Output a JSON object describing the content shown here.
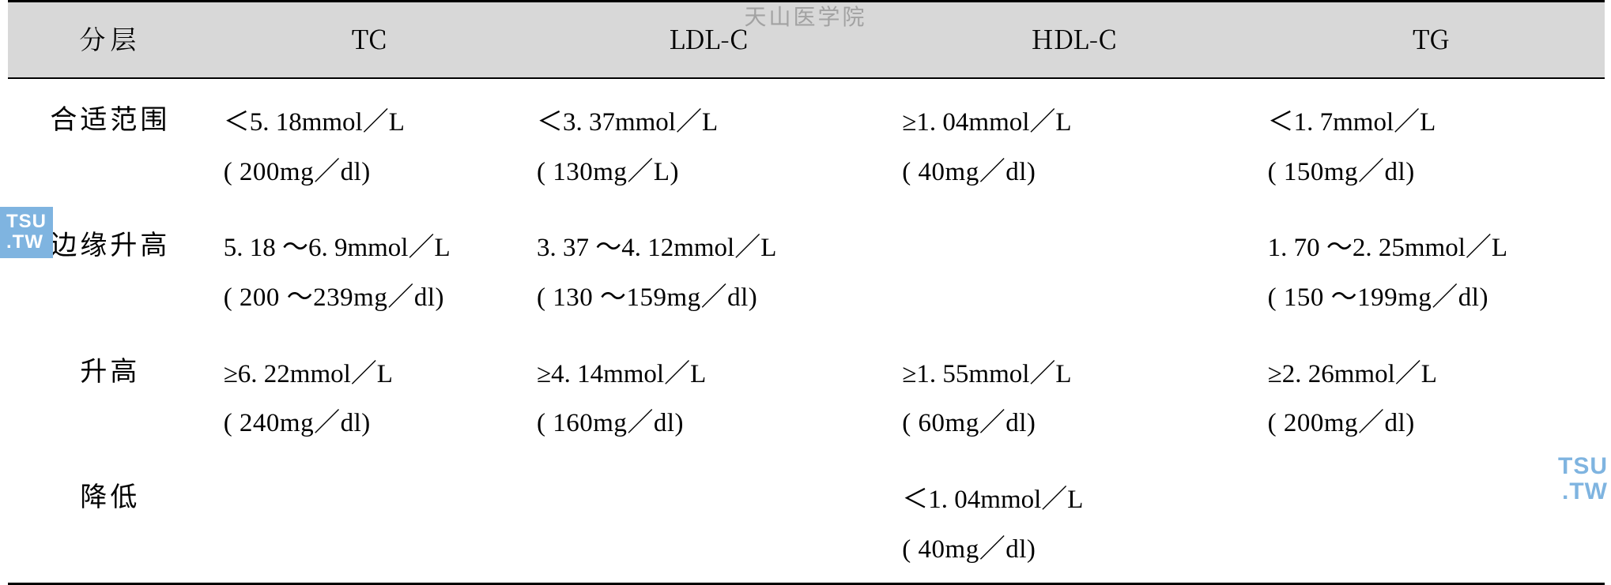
{
  "table": {
    "type": "table",
    "background_color": "#ffffff",
    "header_bg": "#d8d8d8",
    "border_color": "#000000",
    "font_family_cjk": "SimSun",
    "font_family_latin": "Times New Roman",
    "header_fontsize": 33,
    "body_fontsize": 33,
    "columns": [
      "分层",
      "TC",
      "LDL-C",
      "HDL-C",
      "TG"
    ],
    "rows": [
      {
        "label": "合适范围",
        "TC": {
          "line1": "＜5. 18mmol／L",
          "line2": "( 200mg／dl)"
        },
        "LDL_C": {
          "line1": "＜3. 37mmol／L",
          "line2": "( 130mg／L)"
        },
        "HDL_C": {
          "line1": "≥1. 04mmol／L",
          "line2": "( 40mg／dl)"
        },
        "TG": {
          "line1": "＜1. 7mmol／L",
          "line2": "( 150mg／dl)"
        }
      },
      {
        "label": "边缘升高",
        "TC": {
          "line1": "5. 18 ～6. 9mmol／L",
          "line2": "( 200 ～239mg／dl)"
        },
        "LDL_C": {
          "line1": "3. 37 ～4. 12mmol／L",
          "line2": "( 130 ～159mg／dl)"
        },
        "HDL_C": {
          "line1": "",
          "line2": ""
        },
        "TG": {
          "line1": "1. 70 ～2. 25mmol／L",
          "line2": "( 150 ～199mg／dl)"
        }
      },
      {
        "label": "升高",
        "TC": {
          "line1": "≥6. 22mmol／L",
          "line2": "( 240mg／dl)"
        },
        "LDL_C": {
          "line1": "≥4. 14mmol／L",
          "line2": "( 160mg／dl)"
        },
        "HDL_C": {
          "line1": "≥1. 55mmol／L",
          "line2": "( 60mg／dl)"
        },
        "TG": {
          "line1": "≥2. 26mmol／L",
          "line2": "( 200mg／dl)"
        }
      },
      {
        "label": "降低",
        "TC": {
          "line1": "",
          "line2": ""
        },
        "LDL_C": {
          "line1": "",
          "line2": ""
        },
        "HDL_C": {
          "line1": "＜1. 04mmol／L",
          "line2": "( 40mg／dl)"
        },
        "TG": {
          "line1": "",
          "line2": ""
        }
      }
    ]
  },
  "watermark_top": "天山医学院",
  "watermark_logo": {
    "line1": "TSU",
    "line2": ".TW",
    "color_bg": "#7fb4e0",
    "color_text": "#ffffff"
  },
  "watermark_logo_br": {
    "line1": "TSU",
    "line2": ".TW",
    "color": "#7fb4e0"
  }
}
